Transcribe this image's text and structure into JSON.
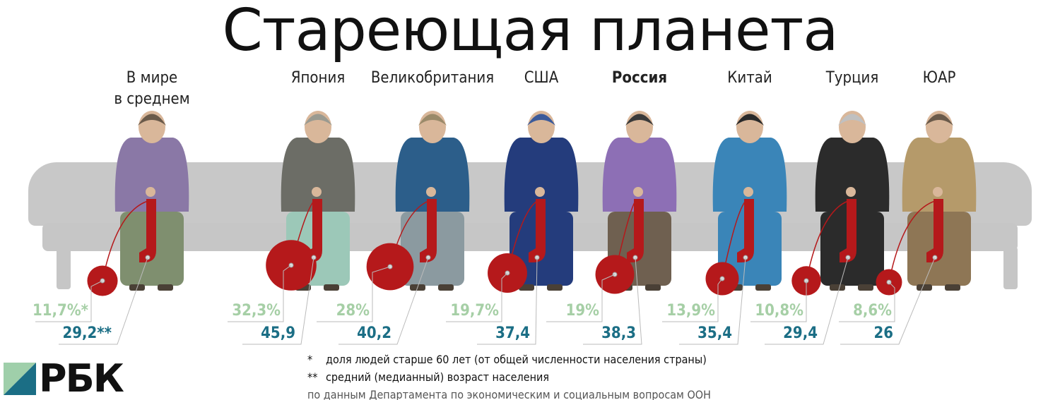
{
  "title": "Стареющая планета",
  "colors": {
    "share_60plus": "#a6cfa6",
    "median_age": "#1b6e85",
    "yarn": "#b5191b",
    "bench": "#c8c8c8"
  },
  "countries": [
    {
      "name": "В мире\nв среднем",
      "share_60plus": "11,7%*",
      "median_age": "29,2**",
      "share_value": 11.7,
      "median_value": 29.2,
      "top": "#8a78a6",
      "skirt": "#7f8f6f",
      "hair": "#6a5a4a",
      "bold": false
    },
    {
      "name": "Япония",
      "share_60plus": "32,3%",
      "median_age": "45,9",
      "share_value": 32.3,
      "median_value": 45.9,
      "top": "#6c6d66",
      "skirt": "#9cc8b8",
      "hair": "#9a9a90",
      "bold": false
    },
    {
      "name": "Великобритания",
      "share_60plus": "28%",
      "median_age": "40,2",
      "share_value": 28,
      "median_value": 40.2,
      "top": "#2c5e8a",
      "skirt": "#8b9aa0",
      "hair": "#9a8a6a",
      "bold": false
    },
    {
      "name": "США",
      "share_60plus": "19,7%",
      "median_age": "37,4",
      "share_value": 19.7,
      "median_value": 37.4,
      "top": "#243c7c",
      "skirt": "#243c7c",
      "hair": "#3b5a9a",
      "bold": false
    },
    {
      "name": "Россия",
      "share_60plus": "19%",
      "median_age": "38,3",
      "share_value": 19,
      "median_value": 38.3,
      "top": "#8d6fb5",
      "skirt": "#6f6050",
      "hair": "#3a3a3a",
      "bold": true
    },
    {
      "name": "Китай",
      "share_60plus": "13,9%",
      "median_age": "35,4",
      "share_value": 13.9,
      "median_value": 35.4,
      "top": "#3a85b8",
      "skirt": "#3a85b8",
      "hair": "#2a2a2a",
      "bold": false
    },
    {
      "name": "Турция",
      "share_60plus": "10,8%",
      "median_age": "29,4",
      "share_value": 10.8,
      "median_value": 29.4,
      "top": "#2b2b2b",
      "skirt": "#2b2b2b",
      "hair": "#c0c0c0",
      "bold": false
    },
    {
      "name": "ЮАР",
      "share_60plus": "8,6%",
      "median_age": "26",
      "share_value": 8.6,
      "median_value": 26,
      "top": "#b59a6a",
      "skirt": "#8e7655",
      "hair": "#6a5a4a",
      "bold": false
    }
  ],
  "notes": {
    "star1_mark": "*",
    "star1": "доля людей старше 60 лет (от общей численности населения страны)",
    "star2_mark": "**",
    "star2": "средний (медианный) возраст населения",
    "source": "по данным Департамента по экономическим и социальным вопросам ООН"
  },
  "logo": "РБК"
}
